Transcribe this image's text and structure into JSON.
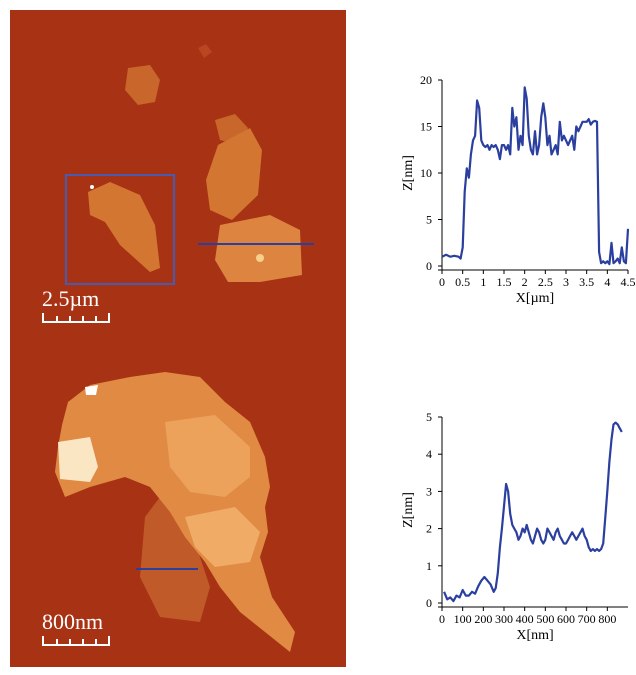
{
  "images": [
    {
      "scalebar": "2.5µm"
    },
    {
      "scalebar": "800nm"
    }
  ],
  "colors": {
    "afm_background": "#a83214",
    "flake": "#e08a44",
    "flake_bright": "#f7c98a",
    "profile_line": "#2b3f9f",
    "selection_box": "#4a5ab0"
  },
  "chart_data": [
    {
      "type": "line",
      "xlabel": "X[µm]",
      "ylabel": "Z[nm]",
      "xlim": [
        0,
        4.5
      ],
      "ylim": [
        0,
        20
      ],
      "xticks": [
        "0",
        "0.5",
        "1",
        "1.5",
        "2",
        "2.5",
        "3",
        "3.5",
        "4",
        "4.5"
      ],
      "yticks": [
        "0",
        "5",
        "10",
        "15",
        "20"
      ],
      "x": [
        0,
        0.1,
        0.2,
        0.3,
        0.4,
        0.45,
        0.5,
        0.55,
        0.6,
        0.65,
        0.7,
        0.75,
        0.8,
        0.85,
        0.9,
        0.95,
        1.0,
        1.05,
        1.1,
        1.15,
        1.2,
        1.25,
        1.3,
        1.35,
        1.4,
        1.45,
        1.5,
        1.55,
        1.6,
        1.65,
        1.7,
        1.75,
        1.8,
        1.85,
        1.9,
        1.95,
        2.0,
        2.05,
        2.1,
        2.15,
        2.2,
        2.25,
        2.3,
        2.35,
        2.4,
        2.45,
        2.5,
        2.55,
        2.6,
        2.65,
        2.7,
        2.75,
        2.8,
        2.85,
        2.9,
        2.95,
        3.0,
        3.05,
        3.1,
        3.15,
        3.2,
        3.25,
        3.3,
        3.35,
        3.4,
        3.45,
        3.5,
        3.55,
        3.6,
        3.65,
        3.7,
        3.75,
        3.8,
        3.85,
        3.9,
        3.95,
        4.0,
        4.05,
        4.1,
        4.15,
        4.2,
        4.25,
        4.3,
        4.35,
        4.4,
        4.45,
        4.5
      ],
      "y": [
        1,
        1.2,
        1,
        1.1,
        1,
        0.8,
        2,
        8,
        10.5,
        9.5,
        12,
        13.5,
        14,
        17.8,
        17,
        13.5,
        13,
        12.8,
        13,
        12.5,
        13,
        12.8,
        13,
        12.5,
        11.5,
        13,
        13,
        12.5,
        13,
        12,
        17,
        15,
        16,
        12.5,
        14,
        13,
        19.2,
        18,
        14,
        12.5,
        12,
        14.5,
        12,
        13,
        16,
        17.5,
        16,
        13,
        14,
        12,
        12.5,
        13,
        12,
        15.5,
        13.5,
        14,
        13.5,
        13,
        13.5,
        14,
        12.5,
        15,
        14.5,
        15,
        15.5,
        15.5,
        15.5,
        15.8,
        15.2,
        15.5,
        15.6,
        15.5,
        1.5,
        0.3,
        0.5,
        0.3,
        0.5,
        0.2,
        2.5,
        0.3,
        0.5,
        0.8,
        0.3,
        2,
        0.5,
        0.3,
        4
      ]
    },
    {
      "type": "line",
      "xlabel": "X[nm]",
      "ylabel": "Z[nm]",
      "xlim": [
        0,
        900
      ],
      "ylim": [
        0,
        5
      ],
      "xticks": [
        "0",
        "100",
        "200",
        "300",
        "400",
        "500",
        "600",
        "700",
        "800"
      ],
      "yticks": [
        "0",
        "1",
        "2",
        "3",
        "4",
        "5"
      ],
      "x": [
        10,
        25,
        40,
        55,
        70,
        85,
        100,
        115,
        130,
        145,
        160,
        175,
        190,
        205,
        220,
        235,
        250,
        260,
        270,
        280,
        290,
        300,
        310,
        320,
        330,
        340,
        350,
        360,
        370,
        380,
        390,
        400,
        410,
        420,
        430,
        440,
        450,
        460,
        470,
        480,
        490,
        500,
        510,
        520,
        530,
        540,
        550,
        560,
        570,
        580,
        590,
        600,
        610,
        620,
        630,
        640,
        650,
        660,
        670,
        680,
        690,
        700,
        710,
        720,
        730,
        740,
        750,
        760,
        770,
        780,
        790,
        800,
        810,
        820,
        830,
        840,
        850,
        860,
        870
      ],
      "y": [
        0.3,
        0.1,
        0.15,
        0.05,
        0.2,
        0.15,
        0.35,
        0.2,
        0.2,
        0.3,
        0.25,
        0.45,
        0.6,
        0.7,
        0.6,
        0.5,
        0.3,
        0.4,
        0.8,
        1.5,
        2,
        2.6,
        3.2,
        3.0,
        2.4,
        2.1,
        2.0,
        1.9,
        1.7,
        1.8,
        2.0,
        1.9,
        2.1,
        1.9,
        1.7,
        1.6,
        1.8,
        2.0,
        1.9,
        1.7,
        1.6,
        1.7,
        2.0,
        1.9,
        1.8,
        1.7,
        1.9,
        2.0,
        1.8,
        1.7,
        1.6,
        1.6,
        1.7,
        1.8,
        1.9,
        1.8,
        1.7,
        1.8,
        1.9,
        2.0,
        1.8,
        1.7,
        1.5,
        1.4,
        1.45,
        1.4,
        1.45,
        1.4,
        1.45,
        1.6,
        2.3,
        3.0,
        3.8,
        4.4,
        4.8,
        4.85,
        4.8,
        4.7,
        4.6
      ]
    }
  ]
}
